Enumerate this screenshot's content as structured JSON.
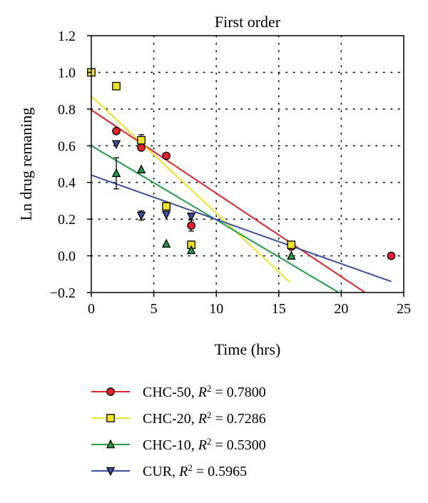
{
  "chart_data": {
    "type": "scatter",
    "title": "First order",
    "xlabel": "Time (hrs)",
    "ylabel": "Ln drug remaning",
    "xlim": [
      0,
      25
    ],
    "ylim": [
      -0.2,
      1.2
    ],
    "xticks": [
      0,
      5,
      10,
      15,
      20,
      25
    ],
    "yticks": [
      -0.2,
      0.0,
      0.2,
      0.4,
      0.6,
      0.8,
      1.0,
      1.2
    ],
    "xtick_labels": [
      "0",
      "5",
      "10",
      "15",
      "20",
      "25"
    ],
    "ytick_labels": [
      "−0.2",
      "0.0",
      "0.2",
      "0.4",
      "0.6",
      "0.8",
      "1.0",
      "1.2"
    ],
    "grid": "dotted",
    "legend_position": "bottom",
    "series": [
      {
        "name": "CHC-50",
        "r2_value": "0.7800",
        "color": "#e8202a",
        "marker": "circle",
        "points": [
          {
            "x": 0,
            "y": 1.0
          },
          {
            "x": 2,
            "y": 0.68
          },
          {
            "x": 4,
            "y": 0.59
          },
          {
            "x": 6,
            "y": 0.545
          },
          {
            "x": 8,
            "y": 0.165,
            "err": 0.03
          },
          {
            "x": 16,
            "y": 0.05
          },
          {
            "x": 24,
            "y": 0.0
          }
        ],
        "fit": {
          "x": [
            0,
            21.9
          ],
          "y": [
            0.795,
            -0.2
          ]
        }
      },
      {
        "name": "CHC-20",
        "r2_value": "0.7286",
        "color": "#f0e320",
        "marker": "square",
        "points": [
          {
            "x": 0,
            "y": 1.0
          },
          {
            "x": 2,
            "y": 0.925
          },
          {
            "x": 4,
            "y": 0.63,
            "err": 0.03
          },
          {
            "x": 6,
            "y": 0.27,
            "err": 0.02
          },
          {
            "x": 8,
            "y": 0.06,
            "err": 0.02
          },
          {
            "x": 16,
            "y": 0.06
          }
        ],
        "fit": {
          "x": [
            0,
            15.9
          ],
          "y": [
            0.87,
            -0.145
          ]
        }
      },
      {
        "name": "CHC-10",
        "r2_value": "0.5300",
        "color": "#1e9e48",
        "marker": "triangle-up",
        "points": [
          {
            "x": 2,
            "y": 0.45,
            "err": 0.085
          },
          {
            "x": 4,
            "y": 0.47
          },
          {
            "x": 6,
            "y": 0.065
          },
          {
            "x": 8,
            "y": 0.03
          },
          {
            "x": 16,
            "y": 0.0
          }
        ],
        "fit": {
          "x": [
            0,
            19.8
          ],
          "y": [
            0.6,
            -0.2
          ]
        }
      },
      {
        "name": "CUR",
        "r2_value": "0.5965",
        "color": "#3c4ea0",
        "marker": "triangle-down",
        "points": [
          {
            "x": 2,
            "y": 0.61
          },
          {
            "x": 4,
            "y": 0.22,
            "err": 0.025
          },
          {
            "x": 6,
            "y": 0.225
          },
          {
            "x": 8,
            "y": 0.215
          }
        ],
        "fit": {
          "x": [
            0,
            24
          ],
          "y": [
            0.44,
            -0.14
          ]
        }
      }
    ]
  }
}
